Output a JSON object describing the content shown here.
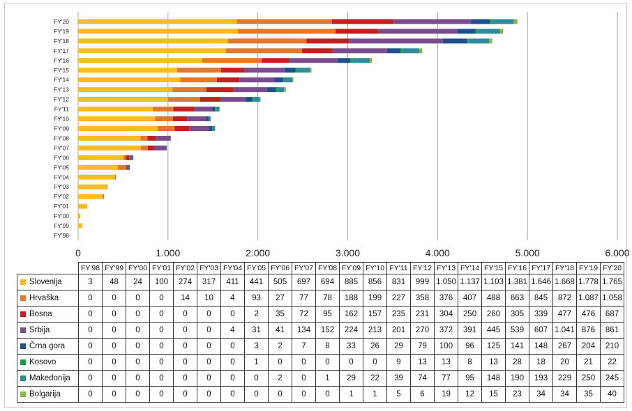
{
  "chart_data": {
    "type": "bar",
    "orientation": "horizontal",
    "stacked": true,
    "categories": [
      "FY'98",
      "FY'99",
      "FY'00",
      "FY'01",
      "FY'02",
      "FY'03",
      "FY'04",
      "FY'05",
      "FY'06",
      "FY'07",
      "FY'08",
      "FY'09",
      "FY'10",
      "FY'11",
      "FY'12",
      "FY'13",
      "FY'14",
      "FY'15",
      "FY'16",
      "FY'17",
      "FY'18",
      "FY'19",
      "FY'20"
    ],
    "x_ticks": [
      "0",
      "1.000",
      "2.000",
      "3.000",
      "4.000",
      "5.000",
      "6.000"
    ],
    "xlim": [
      0,
      6000
    ],
    "grid": true,
    "legend": "data table below chart",
    "series": [
      {
        "name": "Slovenija",
        "color": "#F9BC23",
        "values": [
          3,
          48,
          24,
          100,
          274,
          317,
          411,
          441,
          505,
          697,
          694,
          885,
          856,
          831,
          999,
          1050,
          1137,
          1103,
          1381,
          1646,
          1668,
          1778,
          1765
        ],
        "labels": [
          "3",
          "48",
          "24",
          "100",
          "274",
          "317",
          "411",
          "441",
          "505",
          "697",
          "694",
          "885",
          "856",
          "831",
          "999",
          "1.050",
          "1.137",
          "1.103",
          "1.381",
          "1.646",
          "1.668",
          "1.778",
          "1.765"
        ]
      },
      {
        "name": "Hrvaška",
        "color": "#E0782F",
        "values": [
          0,
          0,
          0,
          0,
          14,
          10,
          4,
          93,
          27,
          77,
          78,
          188,
          199,
          227,
          358,
          376,
          407,
          488,
          663,
          845,
          872,
          1087,
          1058
        ],
        "labels": [
          "0",
          "0",
          "0",
          "0",
          "14",
          "10",
          "4",
          "93",
          "27",
          "77",
          "78",
          "188",
          "199",
          "227",
          "358",
          "376",
          "407",
          "488",
          "663",
          "845",
          "872",
          "1.087",
          "1.058"
        ]
      },
      {
        "name": "Bosna",
        "color": "#C0201E",
        "values": [
          0,
          0,
          0,
          0,
          0,
          0,
          0,
          2,
          35,
          72,
          95,
          162,
          157,
          235,
          231,
          304,
          250,
          260,
          305,
          339,
          477,
          476,
          687
        ],
        "labels": [
          "0",
          "0",
          "0",
          "0",
          "0",
          "0",
          "0",
          "2",
          "35",
          "72",
          "95",
          "162",
          "157",
          "235",
          "231",
          "304",
          "250",
          "260",
          "305",
          "339",
          "477",
          "476",
          "687"
        ]
      },
      {
        "name": "Srbija",
        "color": "#7A4C8E",
        "values": [
          0,
          0,
          0,
          0,
          0,
          0,
          4,
          31,
          41,
          134,
          152,
          224,
          213,
          201,
          270,
          372,
          391,
          445,
          539,
          607,
          1041,
          876,
          861
        ],
        "labels": [
          "0",
          "0",
          "0",
          "0",
          "0",
          "0",
          "4",
          "31",
          "41",
          "134",
          "152",
          "224",
          "213",
          "201",
          "270",
          "372",
          "391",
          "445",
          "539",
          "607",
          "1.041",
          "876",
          "861"
        ]
      },
      {
        "name": "Črna gora",
        "color": "#1F4E8C",
        "values": [
          0,
          0,
          0,
          0,
          0,
          0,
          0,
          3,
          2,
          7,
          8,
          33,
          26,
          29,
          79,
          100,
          96,
          125,
          141,
          148,
          267,
          204,
          210
        ],
        "labels": [
          "0",
          "0",
          "0",
          "0",
          "0",
          "0",
          "0",
          "3",
          "2",
          "7",
          "8",
          "33",
          "26",
          "29",
          "79",
          "100",
          "96",
          "125",
          "141",
          "148",
          "267",
          "204",
          "210"
        ]
      },
      {
        "name": "Kosovo",
        "color": "#1E9B45",
        "values": [
          0,
          0,
          0,
          0,
          0,
          0,
          0,
          1,
          0,
          0,
          0,
          0,
          0,
          9,
          13,
          13,
          8,
          13,
          28,
          18,
          20,
          21,
          22
        ],
        "labels": [
          "0",
          "0",
          "0",
          "0",
          "0",
          "0",
          "0",
          "1",
          "0",
          "0",
          "0",
          "0",
          "0",
          "9",
          "13",
          "13",
          "8",
          "13",
          "28",
          "18",
          "20",
          "21",
          "22"
        ]
      },
      {
        "name": "Makedonija",
        "color": "#2C8C9C",
        "values": [
          0,
          0,
          0,
          0,
          0,
          0,
          0,
          0,
          2,
          0,
          1,
          29,
          22,
          39,
          74,
          77,
          95,
          148,
          190,
          193,
          229,
          250,
          245
        ],
        "labels": [
          "0",
          "0",
          "0",
          "0",
          "0",
          "0",
          "0",
          "0",
          "2",
          "0",
          "1",
          "29",
          "22",
          "39",
          "74",
          "77",
          "95",
          "148",
          "190",
          "193",
          "229",
          "250",
          "245"
        ]
      },
      {
        "name": "Bolgarija",
        "color": "#8DB63C",
        "values": [
          0,
          0,
          0,
          0,
          0,
          0,
          0,
          0,
          0,
          0,
          0,
          1,
          1,
          5,
          6,
          19,
          12,
          15,
          23,
          34,
          34,
          35,
          40
        ],
        "labels": [
          "0",
          "0",
          "0",
          "0",
          "0",
          "0",
          "0",
          "0",
          "0",
          "0",
          "0",
          "1",
          "1",
          "5",
          "6",
          "19",
          "12",
          "15",
          "23",
          "34",
          "34",
          "35",
          "40"
        ]
      }
    ]
  }
}
